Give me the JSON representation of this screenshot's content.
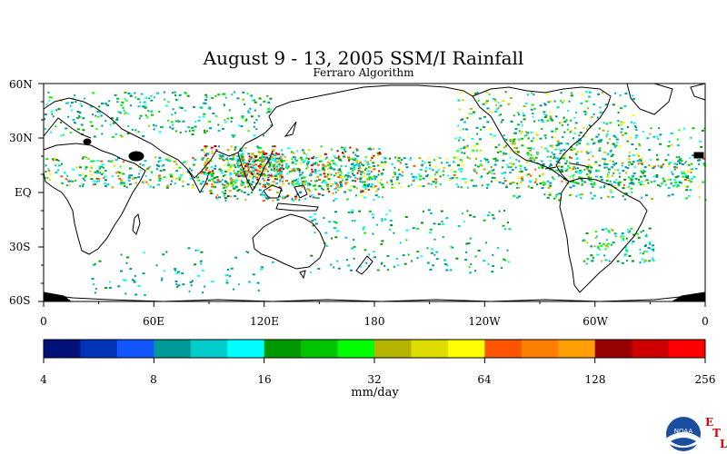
{
  "title": "August 9 - 13, 2005 SSM/I Rainfall",
  "subtitle": "Ferraro Algorithm",
  "lat_labels": [
    "60N",
    "30N",
    "EQ",
    "30S",
    "60S"
  ],
  "lon_labels": [
    "0",
    "60E",
    "120E",
    "180",
    "120W",
    "60W",
    "0"
  ],
  "colorbar": {
    "colors": [
      "#00127a",
      "#0033b8",
      "#1155ff",
      "#00999a",
      "#00cccc",
      "#00ffff",
      "#009900",
      "#00c400",
      "#00ff00",
      "#b5b500",
      "#dddd00",
      "#ffff00",
      "#ff5500",
      "#ff8000",
      "#ffa000",
      "#990000",
      "#cc0000",
      "#ff0000"
    ],
    "labels": [
      "4",
      "8",
      "16",
      "32",
      "64",
      "128",
      "256"
    ],
    "units": "mm/day"
  },
  "logo": {
    "text": "NOAA",
    "letters": [
      "E",
      "T",
      "L"
    ]
  }
}
